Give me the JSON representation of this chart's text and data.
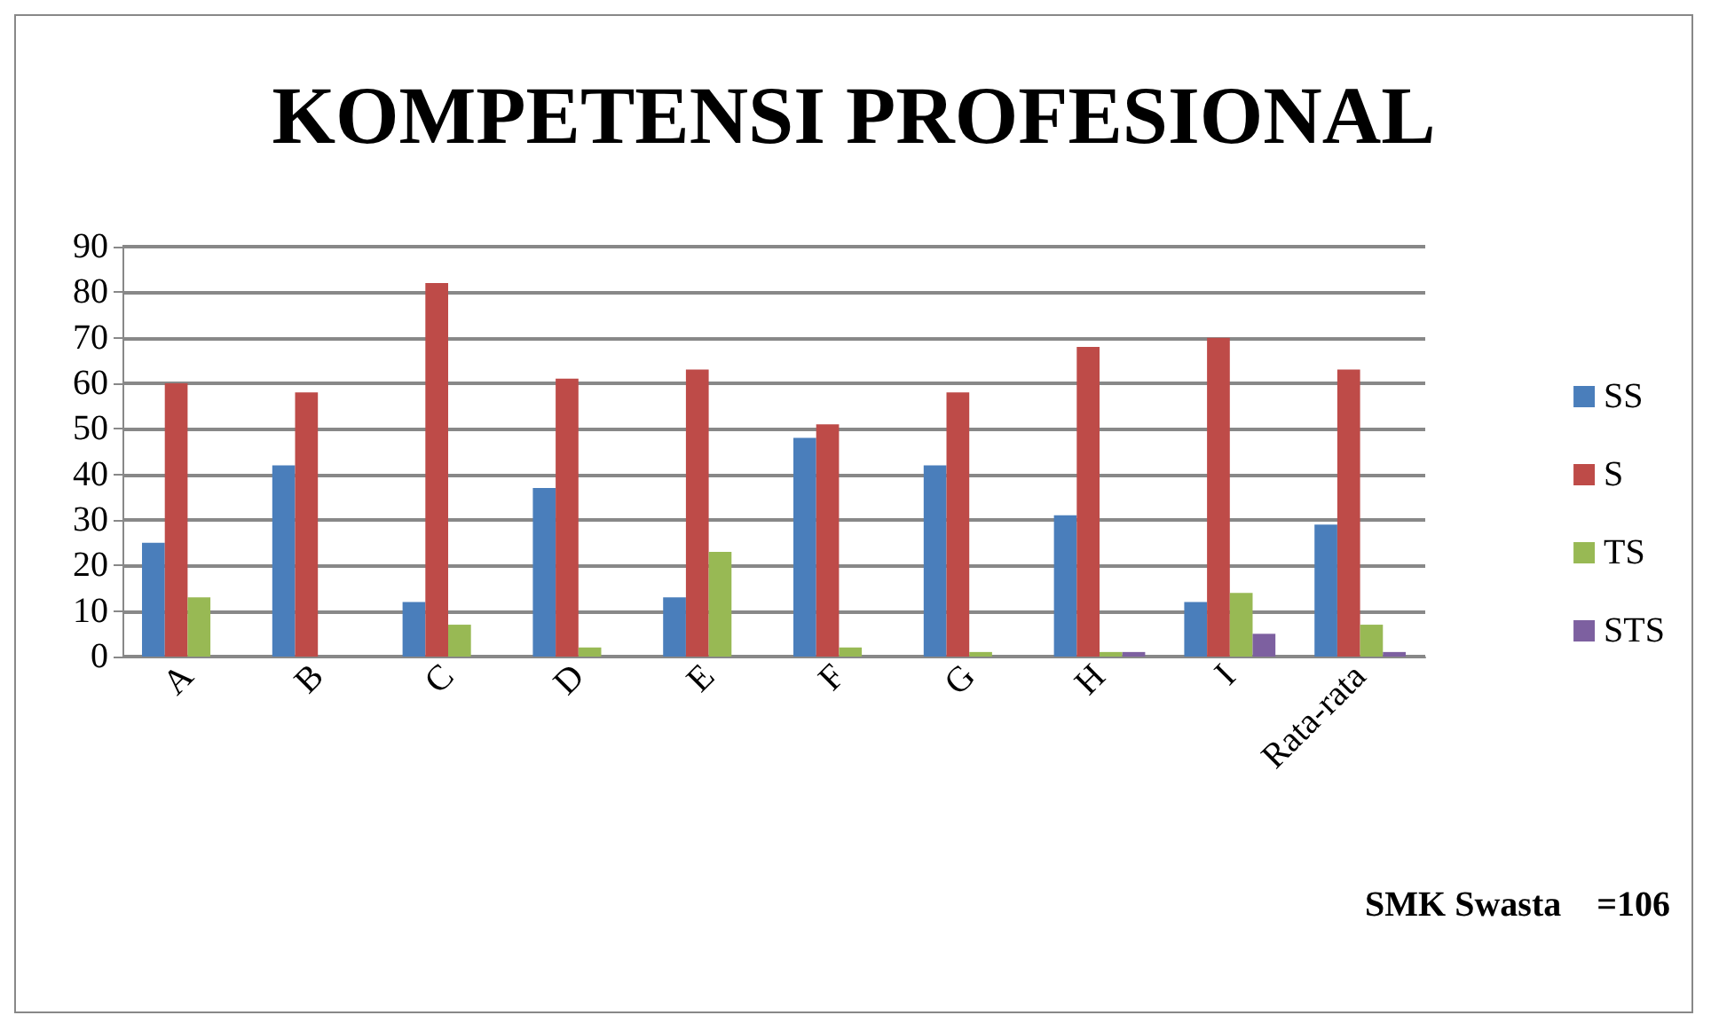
{
  "chart_data": {
    "type": "bar",
    "title": "KOMPETENSI PROFESIONAL",
    "categories": [
      "A",
      "B",
      "C",
      "D",
      "E",
      "F",
      "G",
      "H",
      "I",
      "Rata-rata"
    ],
    "series": [
      {
        "name": "SS",
        "color": "#4a7ebb",
        "values": [
          25,
          42,
          12,
          37,
          13,
          48,
          42,
          31,
          12,
          29
        ]
      },
      {
        "name": "S",
        "color": "#be4b48",
        "values": [
          60,
          58,
          82,
          61,
          63,
          51,
          58,
          68,
          70,
          63
        ]
      },
      {
        "name": "TS",
        "color": "#98b954",
        "values": [
          13,
          0,
          7,
          2,
          23,
          2,
          1,
          1,
          14,
          7
        ]
      },
      {
        "name": "STS",
        "color": "#7d60a0",
        "values": [
          0,
          0,
          0,
          0,
          0,
          0,
          0,
          1,
          5,
          1
        ]
      }
    ],
    "ylim": [
      0,
      90
    ],
    "yticks": [
      0,
      10,
      20,
      30,
      40,
      50,
      60,
      70,
      80,
      90
    ],
    "grid": "y",
    "legend": "right",
    "annotations": [
      "SMK Swasta    =106"
    ]
  }
}
